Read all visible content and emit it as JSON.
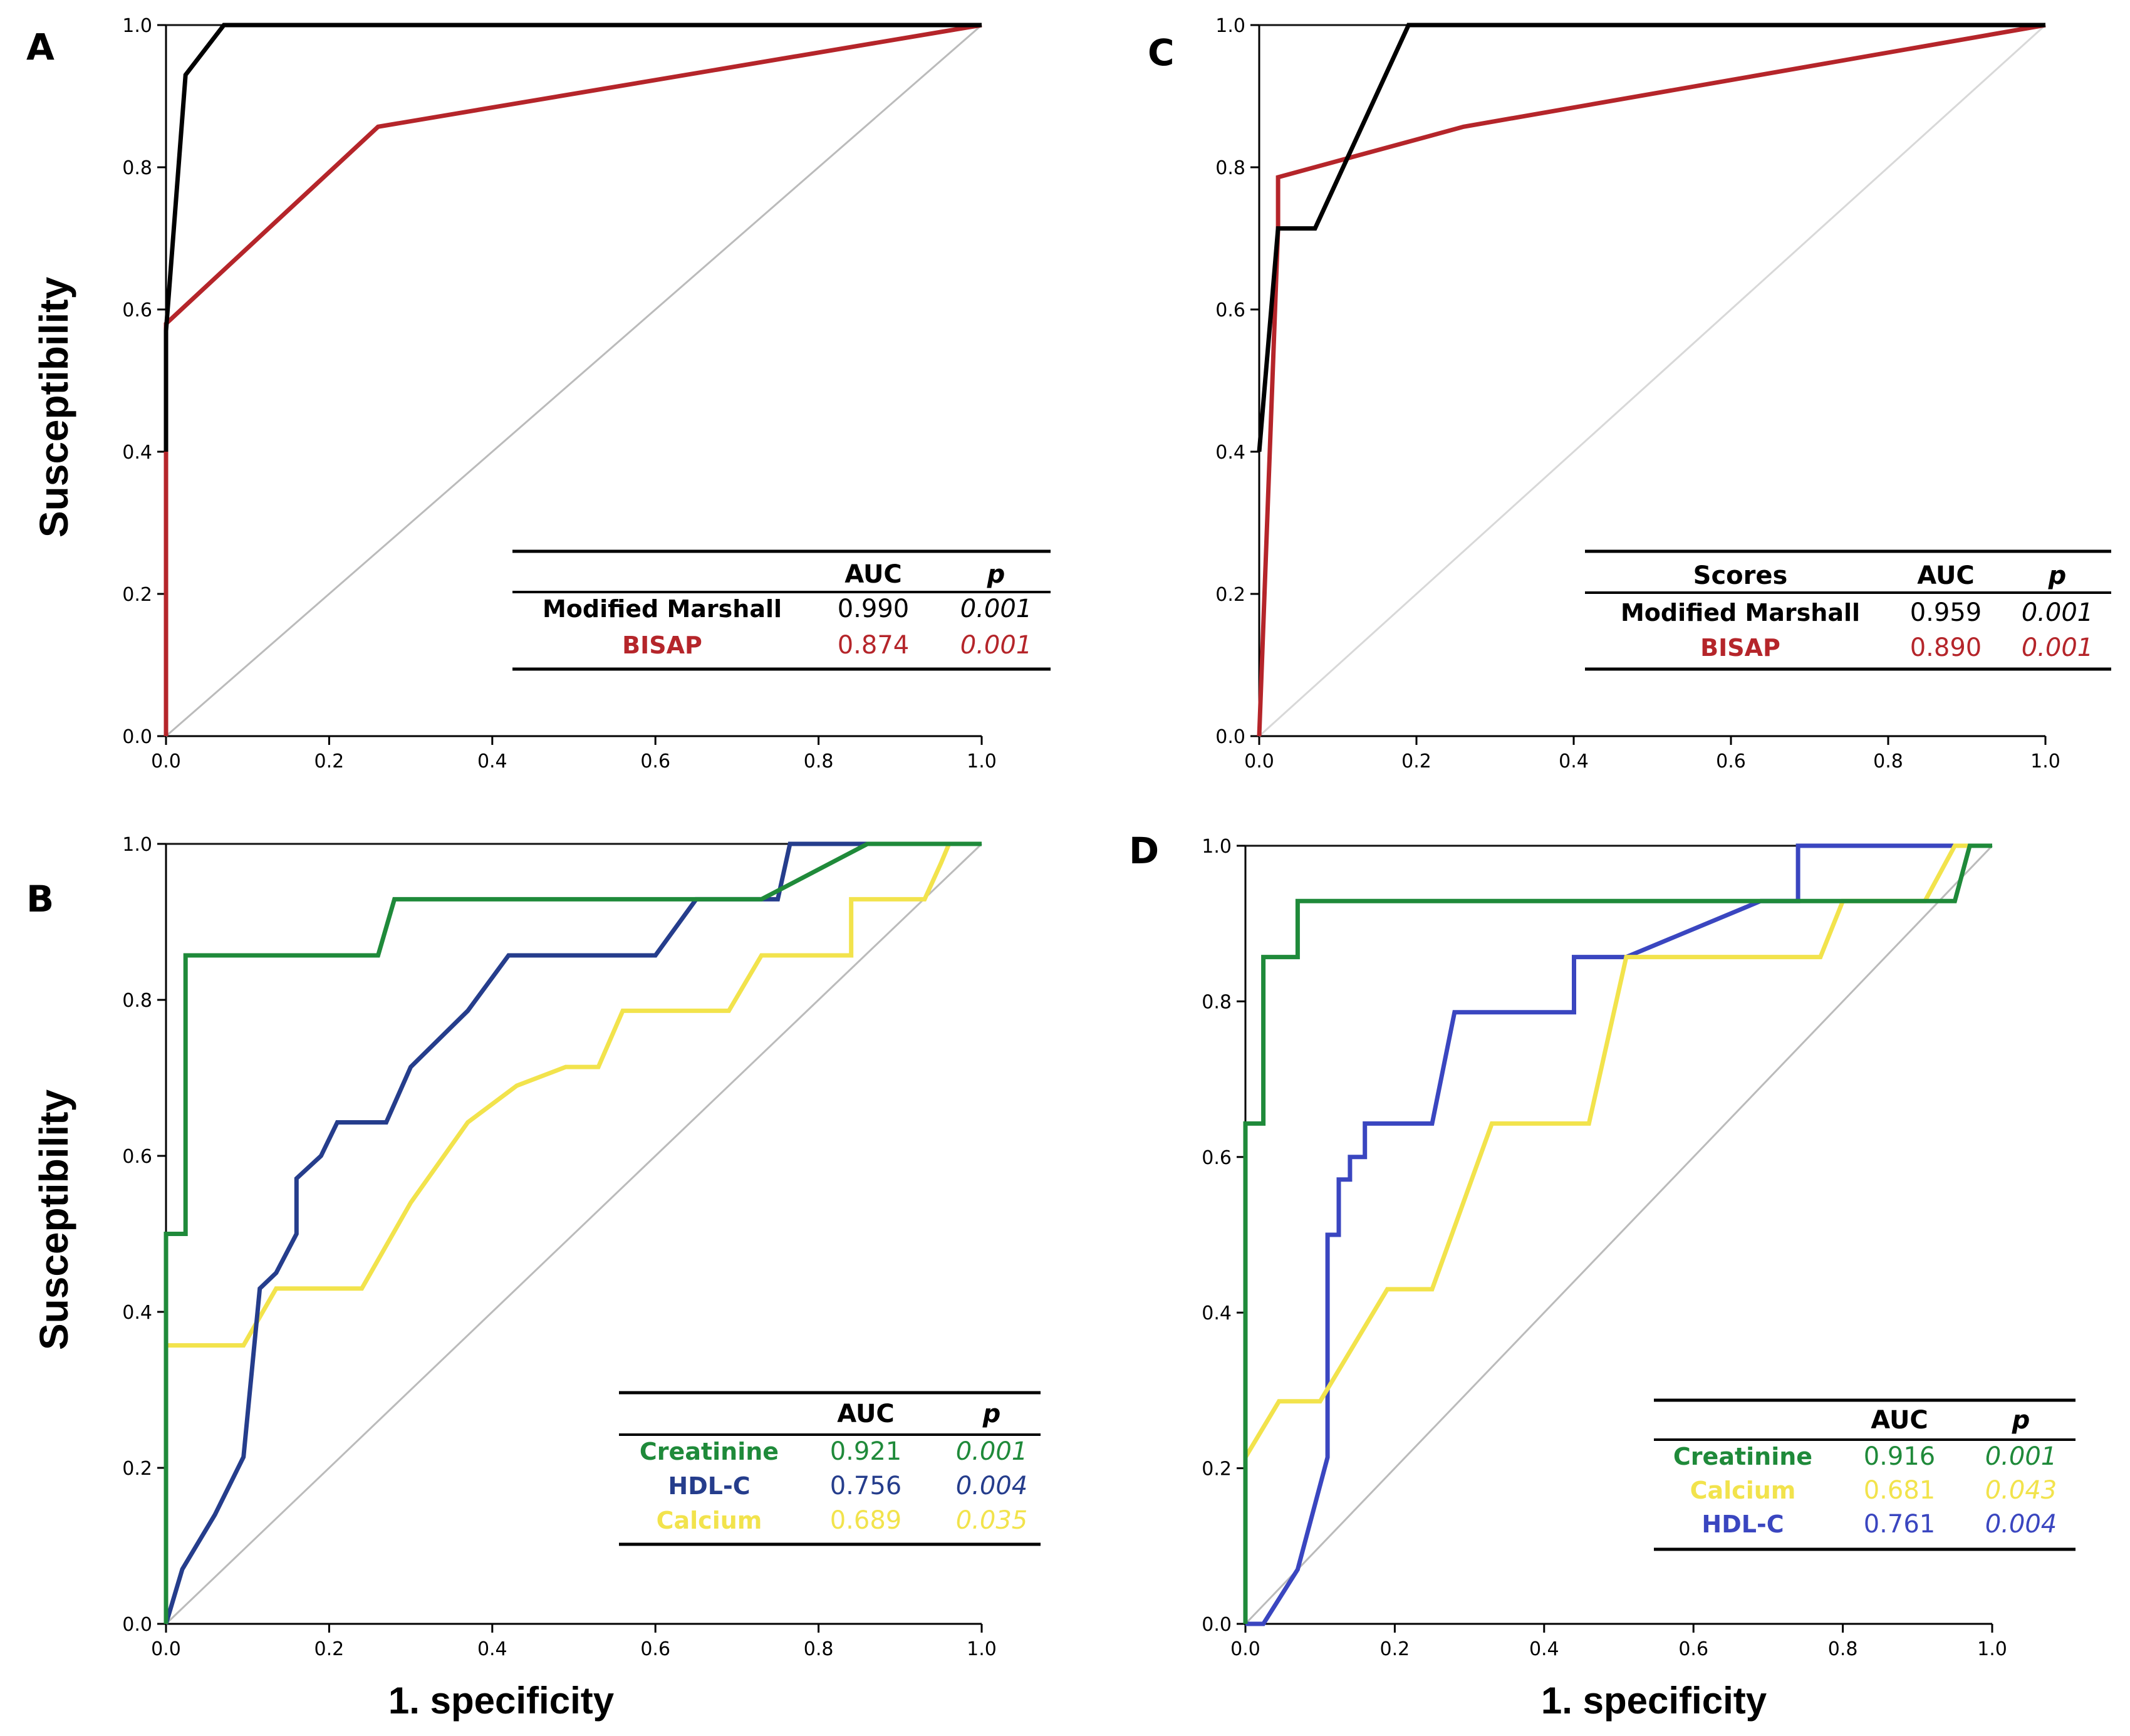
{
  "figure": {
    "y_title": "Susceptibility",
    "x_title": "1. specificity"
  },
  "chart_data": [
    {
      "panel": "A",
      "type": "line",
      "xlim": [
        0,
        1
      ],
      "ylim": [
        0,
        1
      ],
      "xticks": [
        "0.0",
        "0.2",
        "0.4",
        "0.6",
        "0.8",
        "1.0"
      ],
      "yticks": [
        "0.0",
        "0.2",
        "0.4",
        "0.6",
        "0.8",
        "1.0"
      ],
      "xlabel": "",
      "ylabel": "Susceptibility",
      "reference_line": {
        "color": "#bbbbbb"
      },
      "series": [
        {
          "name": "BISAP",
          "color": "#b5252a",
          "auc": "0.874",
          "p": "0.001",
          "x": [
            0,
            0,
            0.26,
            1.0
          ],
          "y": [
            0,
            0.58,
            0.857,
            1.0
          ]
        },
        {
          "name": "Modified Marshall",
          "color": "#000000",
          "auc": "0.990",
          "p": "0.001",
          "x": [
            0,
            0,
            0.024,
            0.071,
            1.0
          ],
          "y": [
            0.4,
            0.57,
            0.93,
            1.0,
            1.0
          ]
        }
      ],
      "legend": {
        "header": [
          "",
          "AUC",
          "p"
        ],
        "position": "bottom-right"
      }
    },
    {
      "panel": "B",
      "type": "line",
      "xlim": [
        0,
        1
      ],
      "ylim": [
        0,
        1
      ],
      "xticks": [
        "0.0",
        "0.2",
        "0.4",
        "0.6",
        "0.8",
        "1.0"
      ],
      "yticks": [
        "0.0",
        "0.2",
        "0.4",
        "0.6",
        "0.8",
        "1.0"
      ],
      "xlabel": "1. specificity",
      "ylabel": "Susceptibility",
      "reference_line": {
        "color": "#bbbbbb"
      },
      "series": [
        {
          "name": "Calcium",
          "color": "#f2e34c",
          "auc": "0.689",
          "p": "0.035",
          "x": [
            0,
            0,
            0.095,
            0.135,
            0.19,
            0.24,
            0.3,
            0.37,
            0.43,
            0.49,
            0.53,
            0.56,
            0.63,
            0.69,
            0.73,
            0.84,
            0.84,
            0.93,
            0.95,
            0.96,
            1.0
          ],
          "y": [
            0,
            0.357,
            0.357,
            0.43,
            0.43,
            0.43,
            0.54,
            0.643,
            0.69,
            0.714,
            0.714,
            0.786,
            0.786,
            0.786,
            0.857,
            0.857,
            0.929,
            0.929,
            0.975,
            1.0,
            1.0
          ]
        },
        {
          "name": "HDL-C",
          "color": "#253d8c",
          "auc": "0.756",
          "p": "0.004",
          "x": [
            0,
            0.02,
            0.06,
            0.095,
            0.115,
            0.135,
            0.16,
            0.16,
            0.19,
            0.21,
            0.27,
            0.3,
            0.37,
            0.42,
            0.6,
            0.65,
            0.75,
            0.765,
            0.79,
            1.0
          ],
          "y": [
            0,
            0.07,
            0.14,
            0.214,
            0.43,
            0.45,
            0.5,
            0.571,
            0.6,
            0.643,
            0.643,
            0.714,
            0.786,
            0.857,
            0.857,
            0.929,
            0.929,
            1.0,
            1.0,
            1.0
          ]
        },
        {
          "name": "Creatinine",
          "color": "#1f8a3a",
          "auc": "0.921",
          "p": "0.001",
          "x": [
            0,
            0,
            0.024,
            0.024,
            0.26,
            0.28,
            0.73,
            0.86,
            1.0
          ],
          "y": [
            0,
            0.5,
            0.5,
            0.857,
            0.857,
            0.929,
            0.929,
            1.0,
            1.0
          ]
        }
      ],
      "legend": {
        "header": [
          "",
          "AUC",
          "p"
        ],
        "position": "bottom-right"
      }
    },
    {
      "panel": "C",
      "type": "line",
      "xlim": [
        0,
        1
      ],
      "ylim": [
        0,
        1
      ],
      "xticks": [
        "0.0",
        "0.2",
        "0.4",
        "0.6",
        "0.8",
        "1.0"
      ],
      "yticks": [
        "0.0",
        "0.2",
        "0.4",
        "0.6",
        "0.8",
        "1.0"
      ],
      "xlabel": "",
      "ylabel": "",
      "reference_line": {
        "color": "#d8d8d8"
      },
      "series": [
        {
          "name": "BISAP",
          "color": "#b5252a",
          "auc": "0.890",
          "p": "0.001",
          "x": [
            0,
            0.024,
            0.024,
            0.26,
            1.0
          ],
          "y": [
            0,
            0.714,
            0.786,
            0.857,
            1.0
          ]
        },
        {
          "name": "Modified Marshall",
          "color": "#000000",
          "auc": "0.959",
          "p": "0.001",
          "x": [
            0,
            0,
            0.024,
            0.071,
            0.19,
            1.0
          ],
          "y": [
            0.4,
            0.4,
            0.714,
            0.714,
            1.0,
            1.0
          ]
        }
      ],
      "legend": {
        "header": [
          "Scores",
          "AUC",
          "p"
        ],
        "position": "bottom-right"
      }
    },
    {
      "panel": "D",
      "type": "line",
      "xlim": [
        0,
        1
      ],
      "ylim": [
        0,
        1
      ],
      "xticks": [
        "0.0",
        "0.2",
        "0.4",
        "0.6",
        "0.8",
        "1.0"
      ],
      "yticks": [
        "0.0",
        "0.2",
        "0.4",
        "0.6",
        "0.8",
        "1.0"
      ],
      "xlabel": "1. specificity",
      "ylabel": "",
      "reference_line": {
        "color": "#bbbbbb"
      },
      "series": [
        {
          "name": "HDL-C",
          "color": "#3a46c0",
          "auc": "0.761",
          "p": "0.004",
          "x": [
            0,
            0.024,
            0.07,
            0.11,
            0.11,
            0.125,
            0.125,
            0.14,
            0.14,
            0.16,
            0.16,
            0.19,
            0.25,
            0.28,
            0.44,
            0.44,
            0.51,
            0.69,
            0.74,
            0.74,
            1.0
          ],
          "y": [
            0,
            0,
            0.07,
            0.214,
            0.5,
            0.5,
            0.571,
            0.571,
            0.6,
            0.6,
            0.643,
            0.643,
            0.643,
            0.786,
            0.786,
            0.857,
            0.857,
            0.929,
            0.929,
            1.0,
            1.0
          ]
        },
        {
          "name": "Calcium",
          "color": "#f2e34c",
          "auc": "0.681",
          "p": "0.043",
          "x": [
            0,
            0,
            0.045,
            0.1,
            0.19,
            0.25,
            0.33,
            0.46,
            0.51,
            0.77,
            0.8,
            0.91,
            0.95,
            1.0
          ],
          "y": [
            0,
            0.214,
            0.286,
            0.286,
            0.43,
            0.43,
            0.643,
            0.643,
            0.857,
            0.857,
            0.929,
            0.929,
            1.0,
            1.0
          ]
        },
        {
          "name": "Creatinine",
          "color": "#1f8a3a",
          "auc": "0.916",
          "p": "0.001",
          "x": [
            0,
            0,
            0.024,
            0.024,
            0.07,
            0.07,
            0.95,
            0.97,
            1.0
          ],
          "y": [
            0,
            0.643,
            0.643,
            0.857,
            0.857,
            0.929,
            0.929,
            1.0,
            1.0
          ]
        }
      ],
      "legend": {
        "header": [
          "",
          "AUC",
          "p"
        ],
        "position": "bottom-right"
      }
    }
  ]
}
